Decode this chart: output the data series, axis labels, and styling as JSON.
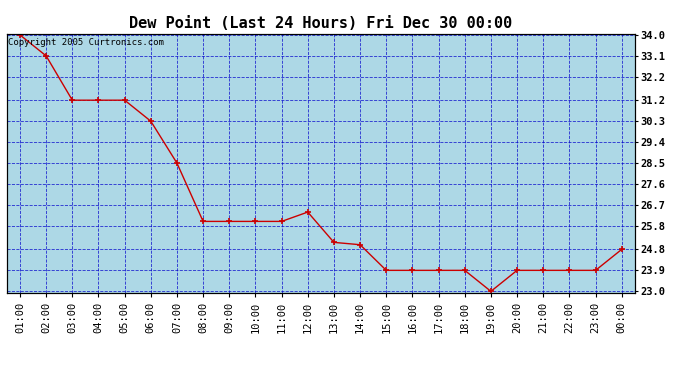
{
  "title": "Dew Point (Last 24 Hours) Fri Dec 30 00:00",
  "copyright": "Copyright 2005 Curtronics.com",
  "x_labels": [
    "01:00",
    "02:00",
    "03:00",
    "04:00",
    "05:00",
    "06:00",
    "07:00",
    "08:00",
    "09:00",
    "10:00",
    "11:00",
    "12:00",
    "13:00",
    "14:00",
    "15:00",
    "16:00",
    "17:00",
    "18:00",
    "19:00",
    "20:00",
    "21:00",
    "22:00",
    "23:00",
    "00:00"
  ],
  "y_values": [
    34.0,
    33.1,
    31.2,
    31.2,
    31.2,
    30.3,
    28.5,
    26.0,
    26.0,
    26.0,
    26.0,
    26.4,
    25.1,
    25.0,
    23.9,
    23.9,
    23.9,
    23.9,
    23.0,
    23.9,
    23.9,
    23.9,
    23.9,
    24.8
  ],
  "y_min": 23.0,
  "y_max": 34.0,
  "y_ticks": [
    23.0,
    23.9,
    24.8,
    25.8,
    26.7,
    27.6,
    28.5,
    29.4,
    30.3,
    31.2,
    32.2,
    33.1,
    34.0
  ],
  "line_color": "#cc0000",
  "marker_color": "#cc0000",
  "bg_color": "#add8e6",
  "grid_color": "#0000cc",
  "title_fontsize": 11,
  "copyright_fontsize": 6.5,
  "tick_fontsize": 7.5,
  "ytick_fontsize": 7.5
}
